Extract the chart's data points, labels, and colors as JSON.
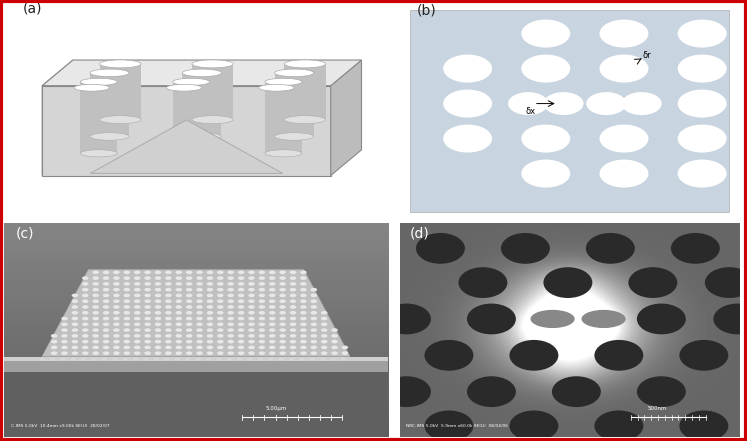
{
  "figure_width": 7.47,
  "figure_height": 4.41,
  "dpi": 100,
  "border_color": "#cc0000",
  "border_linewidth": 2.5,
  "panel_labels": [
    "(a)",
    "(b)",
    "(c)",
    "(d)"
  ],
  "panel_label_fontsize": 10,
  "panel_label_color": "#222222",
  "bg_color_b": "#c8d4e0",
  "hole_color": "white",
  "sem_text_c": "C-IMS 5.0kV  10.4mm x9.00k SE(U)  28/02/07",
  "sem_scale_c": "5.00μm",
  "sem_text_d": "NRC-IMS 5.0kV  5.9mm x60.0k SE(U)  08/04/06",
  "sem_scale_d": "500nm",
  "delta_r_label": "δr",
  "delta_x_label": "δx"
}
